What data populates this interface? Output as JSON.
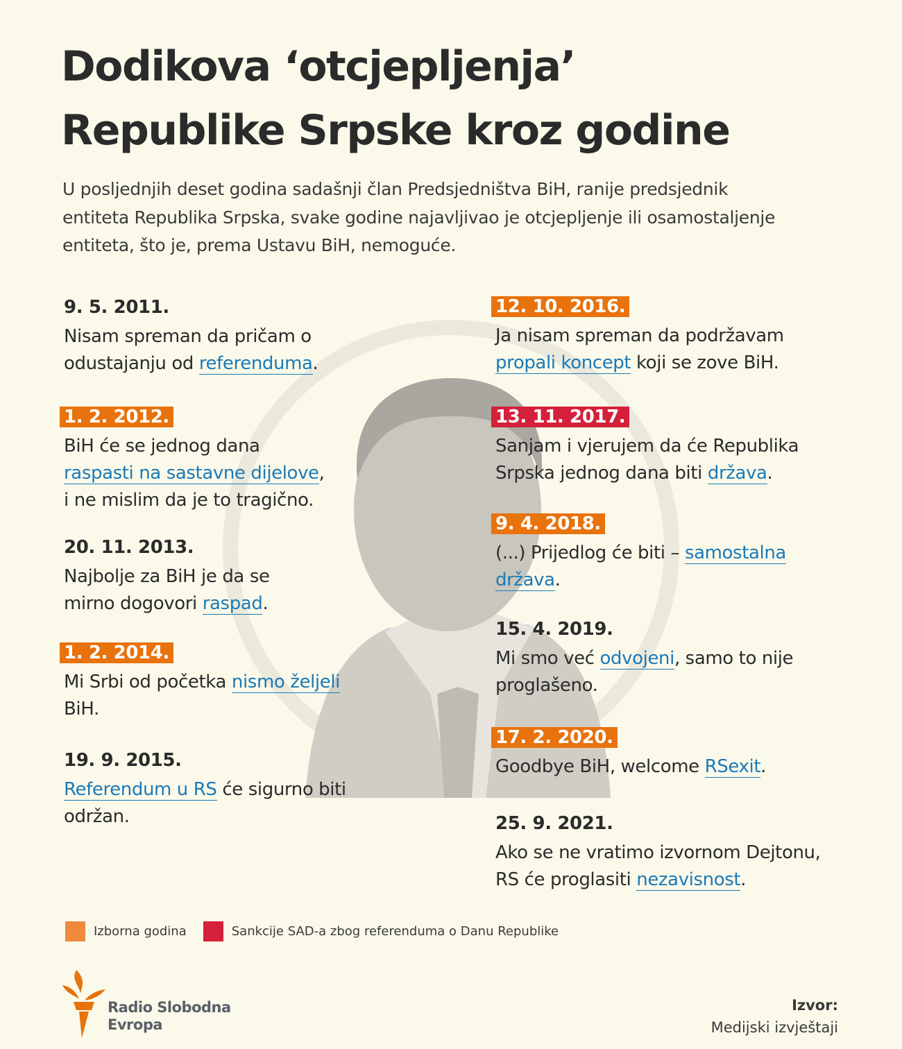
{
  "title": [
    "Dodikova ‘otcjepljenja’",
    "Republike Srpske kroz godine"
  ],
  "intro": [
    "U posljednjih deset godina sadašnji član Predsjedništva BiH, ranije predsjednik",
    "entiteta Republika Srpska, svake godine najavljivao je otcjepljenje ili osamostaljenje",
    "entiteta, što je, prema Ustavu BiH, nemoguće."
  ],
  "colors": {
    "background": "#fbf9ea",
    "election_year": "#e8720c",
    "sanctions": "#d4203a",
    "link": "#1b7ab8"
  },
  "entries": [
    {
      "date": "9. 5. 2011.",
      "badge": "none",
      "lines": [
        [
          {
            "t": "Nisam spreman da pričam o"
          }
        ],
        [
          {
            "t": "odustajanju od "
          },
          {
            "t": "referenduma",
            "link": true
          },
          {
            "t": "."
          }
        ]
      ]
    },
    {
      "date": "1. 2. 2012.",
      "badge": "orange",
      "lines": [
        [
          {
            "t": "BiH će se jednog dana"
          }
        ],
        [
          {
            "t": "raspasti na sastavne dijelove",
            "link": true
          },
          {
            "t": ","
          }
        ],
        [
          {
            "t": "i ne mislim da je to tragično."
          }
        ]
      ]
    },
    {
      "date": "20. 11. 2013.",
      "badge": "none",
      "lines": [
        [
          {
            "t": "Najbolje za BiH je da se"
          }
        ],
        [
          {
            "t": "mirno dogovori "
          },
          {
            "t": "raspad",
            "link": true
          },
          {
            "t": "."
          }
        ]
      ]
    },
    {
      "date": "1. 2. 2014.",
      "badge": "orange",
      "lines": [
        [
          {
            "t": "Mi Srbi od početka "
          },
          {
            "t": "nismo željeli",
            "link": true
          }
        ],
        [
          {
            "t": "BiH."
          }
        ]
      ]
    },
    {
      "date": "19. 9. 2015.",
      "badge": "none",
      "lines": [
        [
          {
            "t": "Referendum u RS",
            "link": true
          },
          {
            "t": " će sigurno biti"
          }
        ],
        [
          {
            "t": "održan."
          }
        ]
      ]
    },
    {
      "date": "12. 10. 2016.",
      "badge": "orange",
      "lines": [
        [
          {
            "t": "Ja nisam spreman da podržavam"
          }
        ],
        [
          {
            "t": "propali koncept",
            "link": true
          },
          {
            "t": " koji se zove BiH."
          }
        ]
      ]
    },
    {
      "date": "13. 11. 2017.",
      "badge": "red",
      "lines": [
        [
          {
            "t": "Sanjam i vjerujem da će Republika"
          }
        ],
        [
          {
            "t": "Srpska jednog dana biti "
          },
          {
            "t": "država",
            "link": true
          },
          {
            "t": "."
          }
        ]
      ]
    },
    {
      "date": "9. 4. 2018.",
      "badge": "orange",
      "lines": [
        [
          {
            "t": "(...) Prijedlog će biti – "
          },
          {
            "t": "samostalna ",
            "link": true
          }
        ],
        [
          {
            "t": "država",
            "link": true
          },
          {
            "t": "."
          }
        ]
      ]
    },
    {
      "date": "15. 4. 2019.",
      "badge": "none",
      "lines": [
        [
          {
            "t": "Mi smo već "
          },
          {
            "t": "odvojeni",
            "link": true
          },
          {
            "t": ", samo to nije"
          }
        ],
        [
          {
            "t": "proglašeno."
          }
        ]
      ]
    },
    {
      "date": "17. 2. 2020.",
      "badge": "orange",
      "lines": [
        [
          {
            "t": "Goodbye BiH, welcome "
          },
          {
            "t": "RSexit",
            "link": true
          },
          {
            "t": "."
          }
        ]
      ]
    },
    {
      "date": "25. 9. 2021.",
      "badge": "none",
      "lines": [
        [
          {
            "t": "Ako se ne vratimo izvornom Dejtonu,"
          }
        ],
        [
          {
            "t": "RS će proglasiti "
          },
          {
            "t": "nezavisnost",
            "link": true
          },
          {
            "t": "."
          }
        ]
      ]
    }
  ],
  "legend": [
    {
      "label": "Izborna godina",
      "color": "#e8720c"
    },
    {
      "label": "Sankcije SAD-a zbog referenduma o Danu Republike",
      "color": "#d4203a"
    }
  ],
  "logo": {
    "name": "Radio Slobodna Evropa",
    "lines": [
      "Radio Slobodna",
      "Evropa"
    ],
    "icon": "torch-icon"
  },
  "source": {
    "label": "Izvor:",
    "value": "Medijski izvještaji"
  }
}
